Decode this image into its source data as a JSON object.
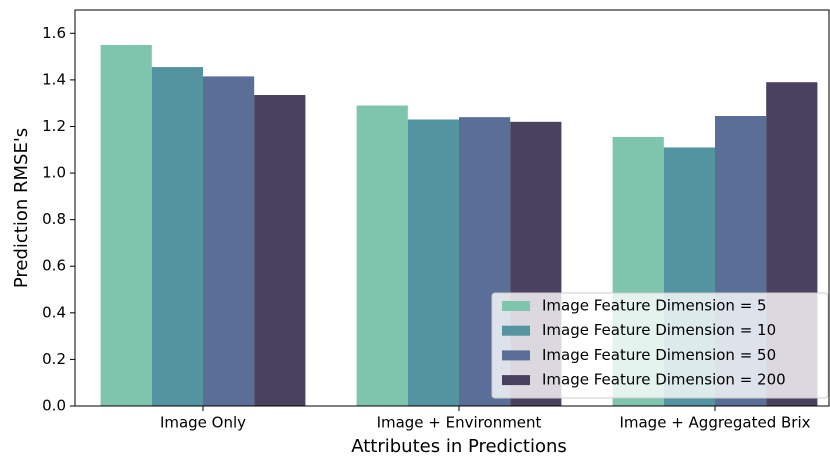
{
  "chart_data": {
    "type": "bar",
    "x_label": "Attributes in Predictions",
    "y_label": "Prediction RMSE's",
    "categories": [
      "Image Only",
      "Image + Environment",
      "Image + Aggregated Brix"
    ],
    "series": [
      {
        "name": "Image Feature Dimension = 5",
        "color": "#7fc4ad",
        "values": [
          1.55,
          1.29,
          1.155
        ]
      },
      {
        "name": "Image Feature Dimension = 10",
        "color": "#5494a0",
        "values": [
          1.455,
          1.23,
          1.11
        ]
      },
      {
        "name": "Image Feature Dimension = 50",
        "color": "#5a6e98",
        "values": [
          1.415,
          1.24,
          1.245
        ]
      },
      {
        "name": "Image Feature Dimension = 200",
        "color": "#4a4160",
        "values": [
          1.335,
          1.22,
          1.39
        ]
      }
    ],
    "ylim": [
      0,
      1.7
    ],
    "yticks": [
      {
        "value": 0,
        "label": "0.0"
      },
      0.2,
      0.4,
      0.6,
      0.8,
      {
        "value": 1,
        "label": "1.0"
      },
      1.2,
      1.4,
      1.6
    ],
    "legend": "lower right"
  }
}
